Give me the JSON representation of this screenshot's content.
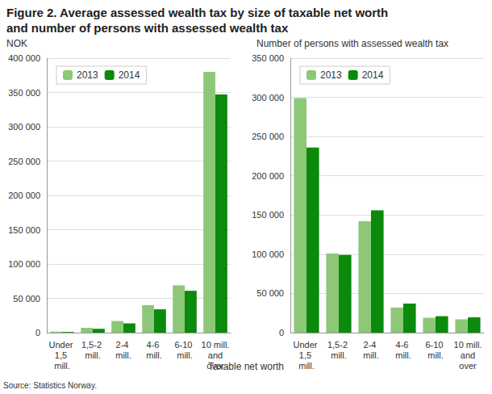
{
  "title": "Figure 2. Average assessed wealth tax by size of taxable net worth and number of persons with assessed wealth tax",
  "xlabel": "Taxable net worth",
  "source": "Source: Statistics Norway.",
  "chart_data": [
    {
      "type": "bar",
      "ylabel": "NOK",
      "categories": [
        "Under 1,5 mill.",
        "1,5-2 mill.",
        "2-4 mill.",
        "4-6 mill.",
        "6-10 mill.",
        "10 mill. and over"
      ],
      "series": [
        {
          "name": "2013",
          "color": "#8dc878",
          "values": [
            1500,
            7000,
            17000,
            40000,
            69000,
            380000
          ]
        },
        {
          "name": "2014",
          "color": "#0b8a0b",
          "values": [
            1000,
            5500,
            13500,
            34000,
            61000,
            347000
          ]
        }
      ],
      "ylim": [
        0,
        400000
      ],
      "yticks": [
        0,
        {
          "value": 50000,
          "label": "50 000"
        },
        {
          "value": 100000,
          "label": "100 000"
        },
        {
          "value": 150000,
          "label": "150 000"
        },
        {
          "value": 200000,
          "label": "200 000"
        },
        {
          "value": 250000,
          "label": "250 000"
        },
        {
          "value": 300000,
          "label": "300 000"
        },
        {
          "value": 350000,
          "label": "350 000"
        },
        {
          "value": 400000,
          "label": "400 000"
        }
      ],
      "grid": true,
      "legend": "upper left"
    },
    {
      "type": "bar",
      "ylabel": "Number of persons with assessed wealth tax",
      "categories": [
        "Under 1,5 mill.",
        "1,5-2 mill.",
        "2-4 mill.",
        "4-6 mill.",
        "6-10 mill.",
        "10 mill. and over"
      ],
      "series": [
        {
          "name": "2013",
          "color": "#8dc878",
          "values": [
            299000,
            101000,
            142000,
            32000,
            19000,
            17000
          ]
        },
        {
          "name": "2014",
          "color": "#0b8a0b",
          "values": [
            236000,
            99000,
            156000,
            37000,
            21000,
            19500
          ]
        }
      ],
      "ylim": [
        0,
        350000
      ],
      "yticks": [
        0,
        {
          "value": 50000,
          "label": "50 000"
        },
        {
          "value": 100000,
          "label": "100 000"
        },
        {
          "value": 150000,
          "label": "150 000"
        },
        {
          "value": 200000,
          "label": "200 000"
        },
        {
          "value": 250000,
          "label": "250 000"
        },
        {
          "value": 300000,
          "label": "300 000"
        },
        {
          "value": 350000,
          "label": "350 000"
        }
      ],
      "grid": true,
      "legend": "upper left"
    }
  ]
}
